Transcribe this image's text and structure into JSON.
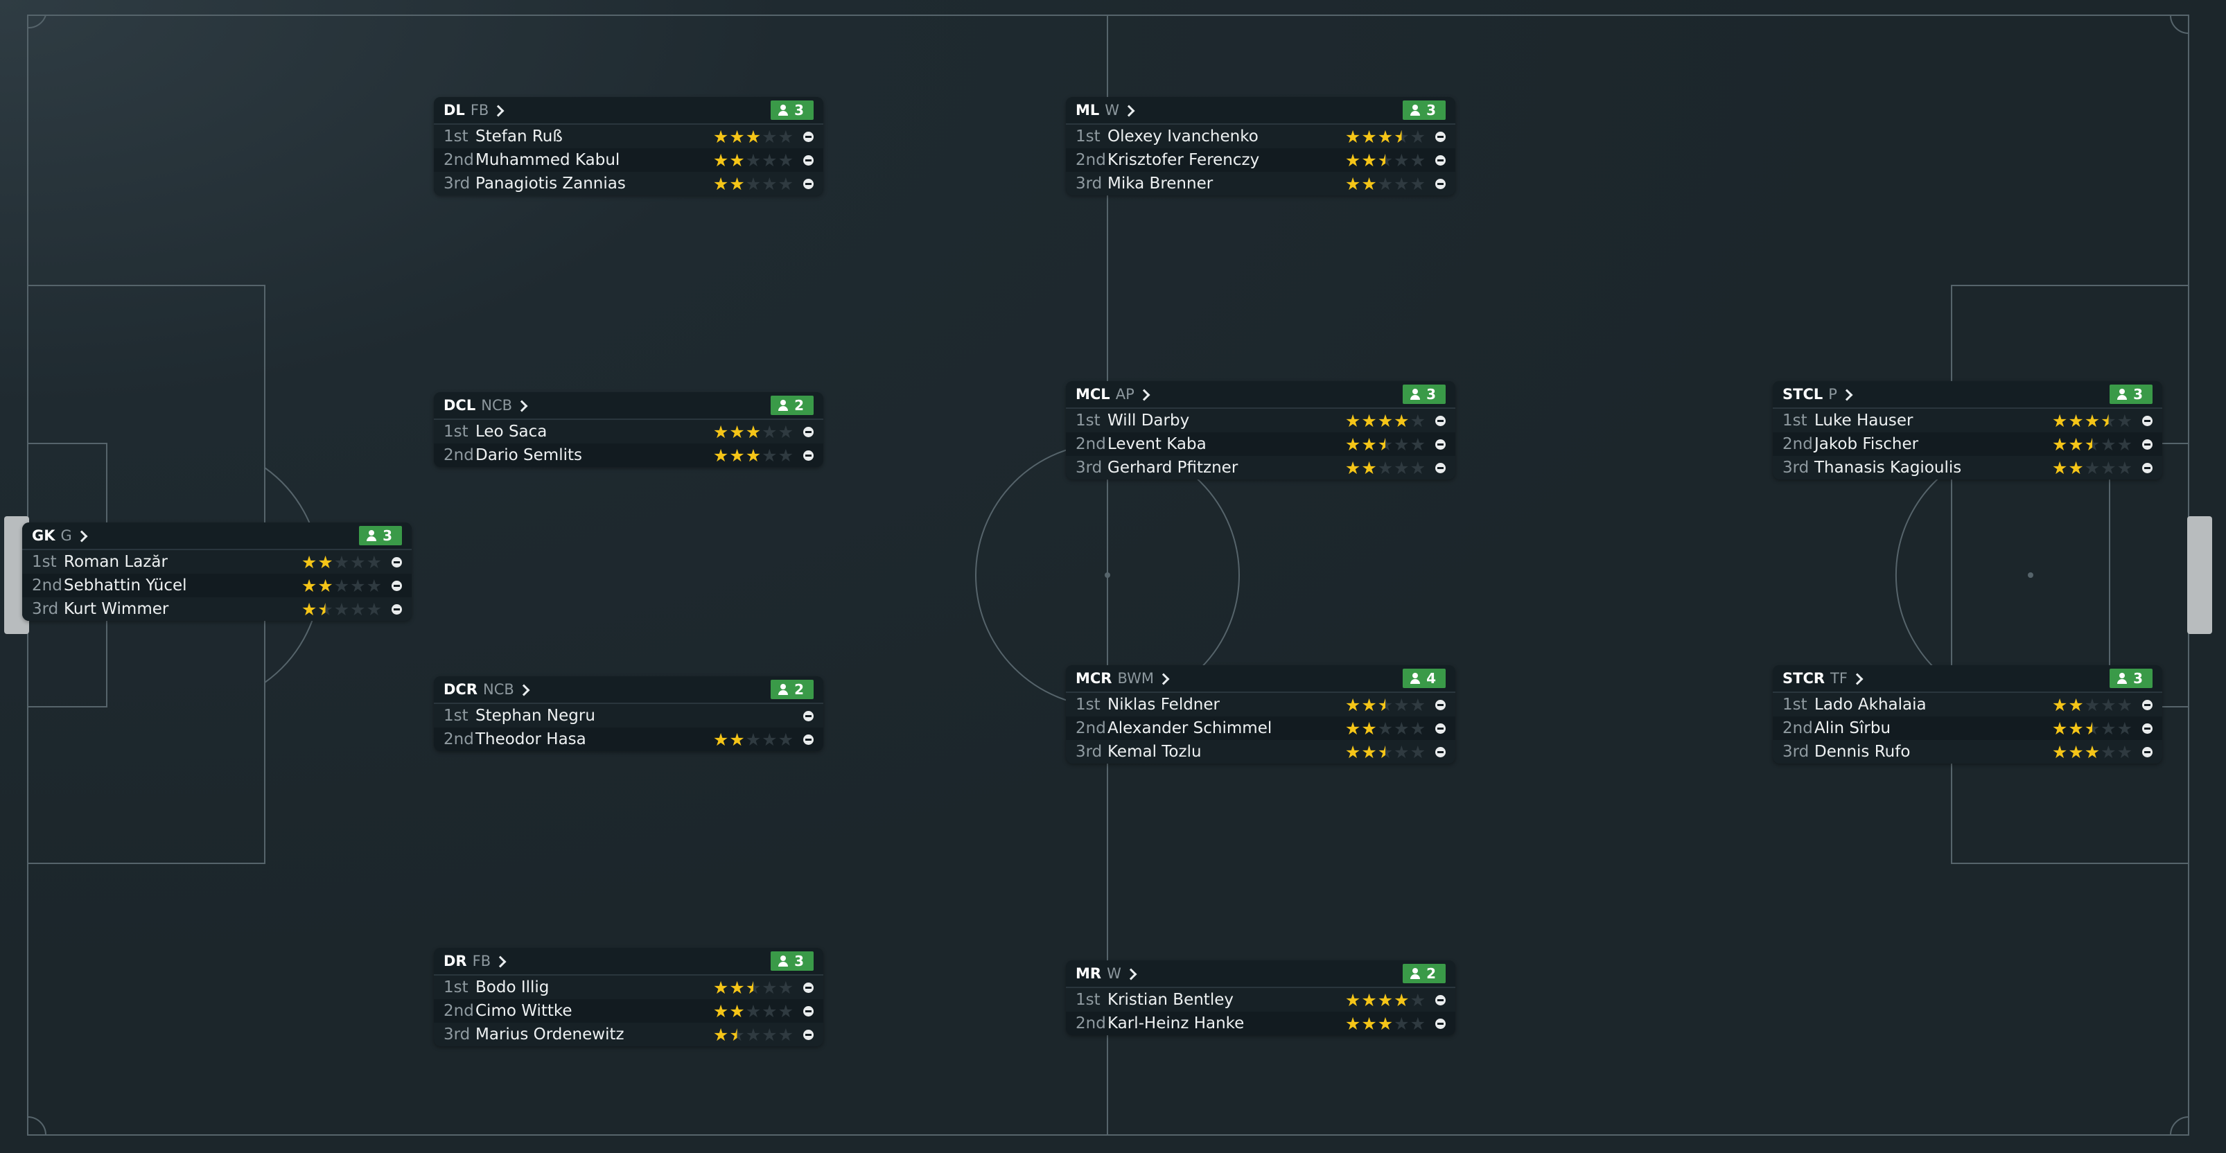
{
  "positions": [
    {
      "id": "gk",
      "code": "GK",
      "role": "G",
      "count": "3",
      "players": [
        {
          "rank": "1st",
          "name": "Roman Lazăr",
          "stars": 2
        },
        {
          "rank": "2nd",
          "name": "Sebhattin Yücel",
          "stars": 2
        },
        {
          "rank": "3rd",
          "name": "Kurt Wimmer",
          "stars": 1.5
        }
      ]
    },
    {
      "id": "dl",
      "code": "DL",
      "role": "FB",
      "count": "3",
      "players": [
        {
          "rank": "1st",
          "name": "Stefan Ruß",
          "stars": 3
        },
        {
          "rank": "2nd",
          "name": "Muhammed Kabul",
          "stars": 2
        },
        {
          "rank": "3rd",
          "name": "Panagiotis Zannias",
          "stars": 2
        }
      ]
    },
    {
      "id": "dcl",
      "code": "DCL",
      "role": "NCB",
      "count": "2",
      "players": [
        {
          "rank": "1st",
          "name": "Leo Saca",
          "stars": 3
        },
        {
          "rank": "2nd",
          "name": "Dario Semlits",
          "stars": 3
        }
      ]
    },
    {
      "id": "dcr",
      "code": "DCR",
      "role": "NCB",
      "count": "2",
      "players": [
        {
          "rank": "1st",
          "name": "Stephan Negru",
          "stars": 0
        },
        {
          "rank": "2nd",
          "name": "Theodor Hasa",
          "stars": 2
        }
      ]
    },
    {
      "id": "dr",
      "code": "DR",
      "role": "FB",
      "count": "3",
      "players": [
        {
          "rank": "1st",
          "name": "Bodo Illig",
          "stars": 2.5
        },
        {
          "rank": "2nd",
          "name": "Cimo Wittke",
          "stars": 2
        },
        {
          "rank": "3rd",
          "name": "Marius Ordenewitz",
          "stars": 1.5
        }
      ]
    },
    {
      "id": "ml",
      "code": "ML",
      "role": "W",
      "count": "3",
      "players": [
        {
          "rank": "1st",
          "name": "Olexey Ivanchenko",
          "stars": 3.5
        },
        {
          "rank": "2nd",
          "name": "Krisztofer Ferenczy",
          "stars": 2.5
        },
        {
          "rank": "3rd",
          "name": "Mika Brenner",
          "stars": 2
        }
      ]
    },
    {
      "id": "mcl",
      "code": "MCL",
      "role": "AP",
      "count": "3",
      "players": [
        {
          "rank": "1st",
          "name": "Will Darby",
          "stars": 4
        },
        {
          "rank": "2nd",
          "name": "Levent Kaba",
          "stars": 2.5
        },
        {
          "rank": "3rd",
          "name": "Gerhard Pfitzner",
          "stars": 2
        }
      ]
    },
    {
      "id": "mcr",
      "code": "MCR",
      "role": "BWM",
      "count": "4",
      "players": [
        {
          "rank": "1st",
          "name": "Niklas Feldner",
          "stars": 2.5
        },
        {
          "rank": "2nd",
          "name": "Alexander Schimmel",
          "stars": 2
        },
        {
          "rank": "3rd",
          "name": "Kemal Tozlu",
          "stars": 2.5
        }
      ]
    },
    {
      "id": "mr",
      "code": "MR",
      "role": "W",
      "count": "2",
      "players": [
        {
          "rank": "1st",
          "name": "Kristian Bentley",
          "stars": 4
        },
        {
          "rank": "2nd",
          "name": "Karl-Heinz Hanke",
          "stars": 3
        }
      ]
    },
    {
      "id": "stcl",
      "code": "STCL",
      "role": "P",
      "count": "3",
      "players": [
        {
          "rank": "1st",
          "name": "Luke Hauser",
          "stars": 3.5
        },
        {
          "rank": "2nd",
          "name": "Jakob Fischer",
          "stars": 2.5
        },
        {
          "rank": "3rd",
          "name": "Thanasis Kagioulis",
          "stars": 2
        }
      ]
    },
    {
      "id": "stcr",
      "code": "STCR",
      "role": "TF",
      "count": "3",
      "players": [
        {
          "rank": "1st",
          "name": "Lado Akhalaia",
          "stars": 2
        },
        {
          "rank": "2nd",
          "name": "Alin Sîrbu",
          "stars": 2.5
        },
        {
          "rank": "3rd",
          "name": "Dennis Rufo",
          "stars": 3
        }
      ]
    }
  ],
  "max_stars": 5,
  "colors": {
    "star": "#f5c518",
    "badge": "#3a9a48",
    "pitch": "#1c262b",
    "card": "#121b20"
  },
  "icons": {
    "players": "person-icon",
    "remove": "minus-circle-icon",
    "open": "chevron-right-icon",
    "rating": "star-icon"
  }
}
